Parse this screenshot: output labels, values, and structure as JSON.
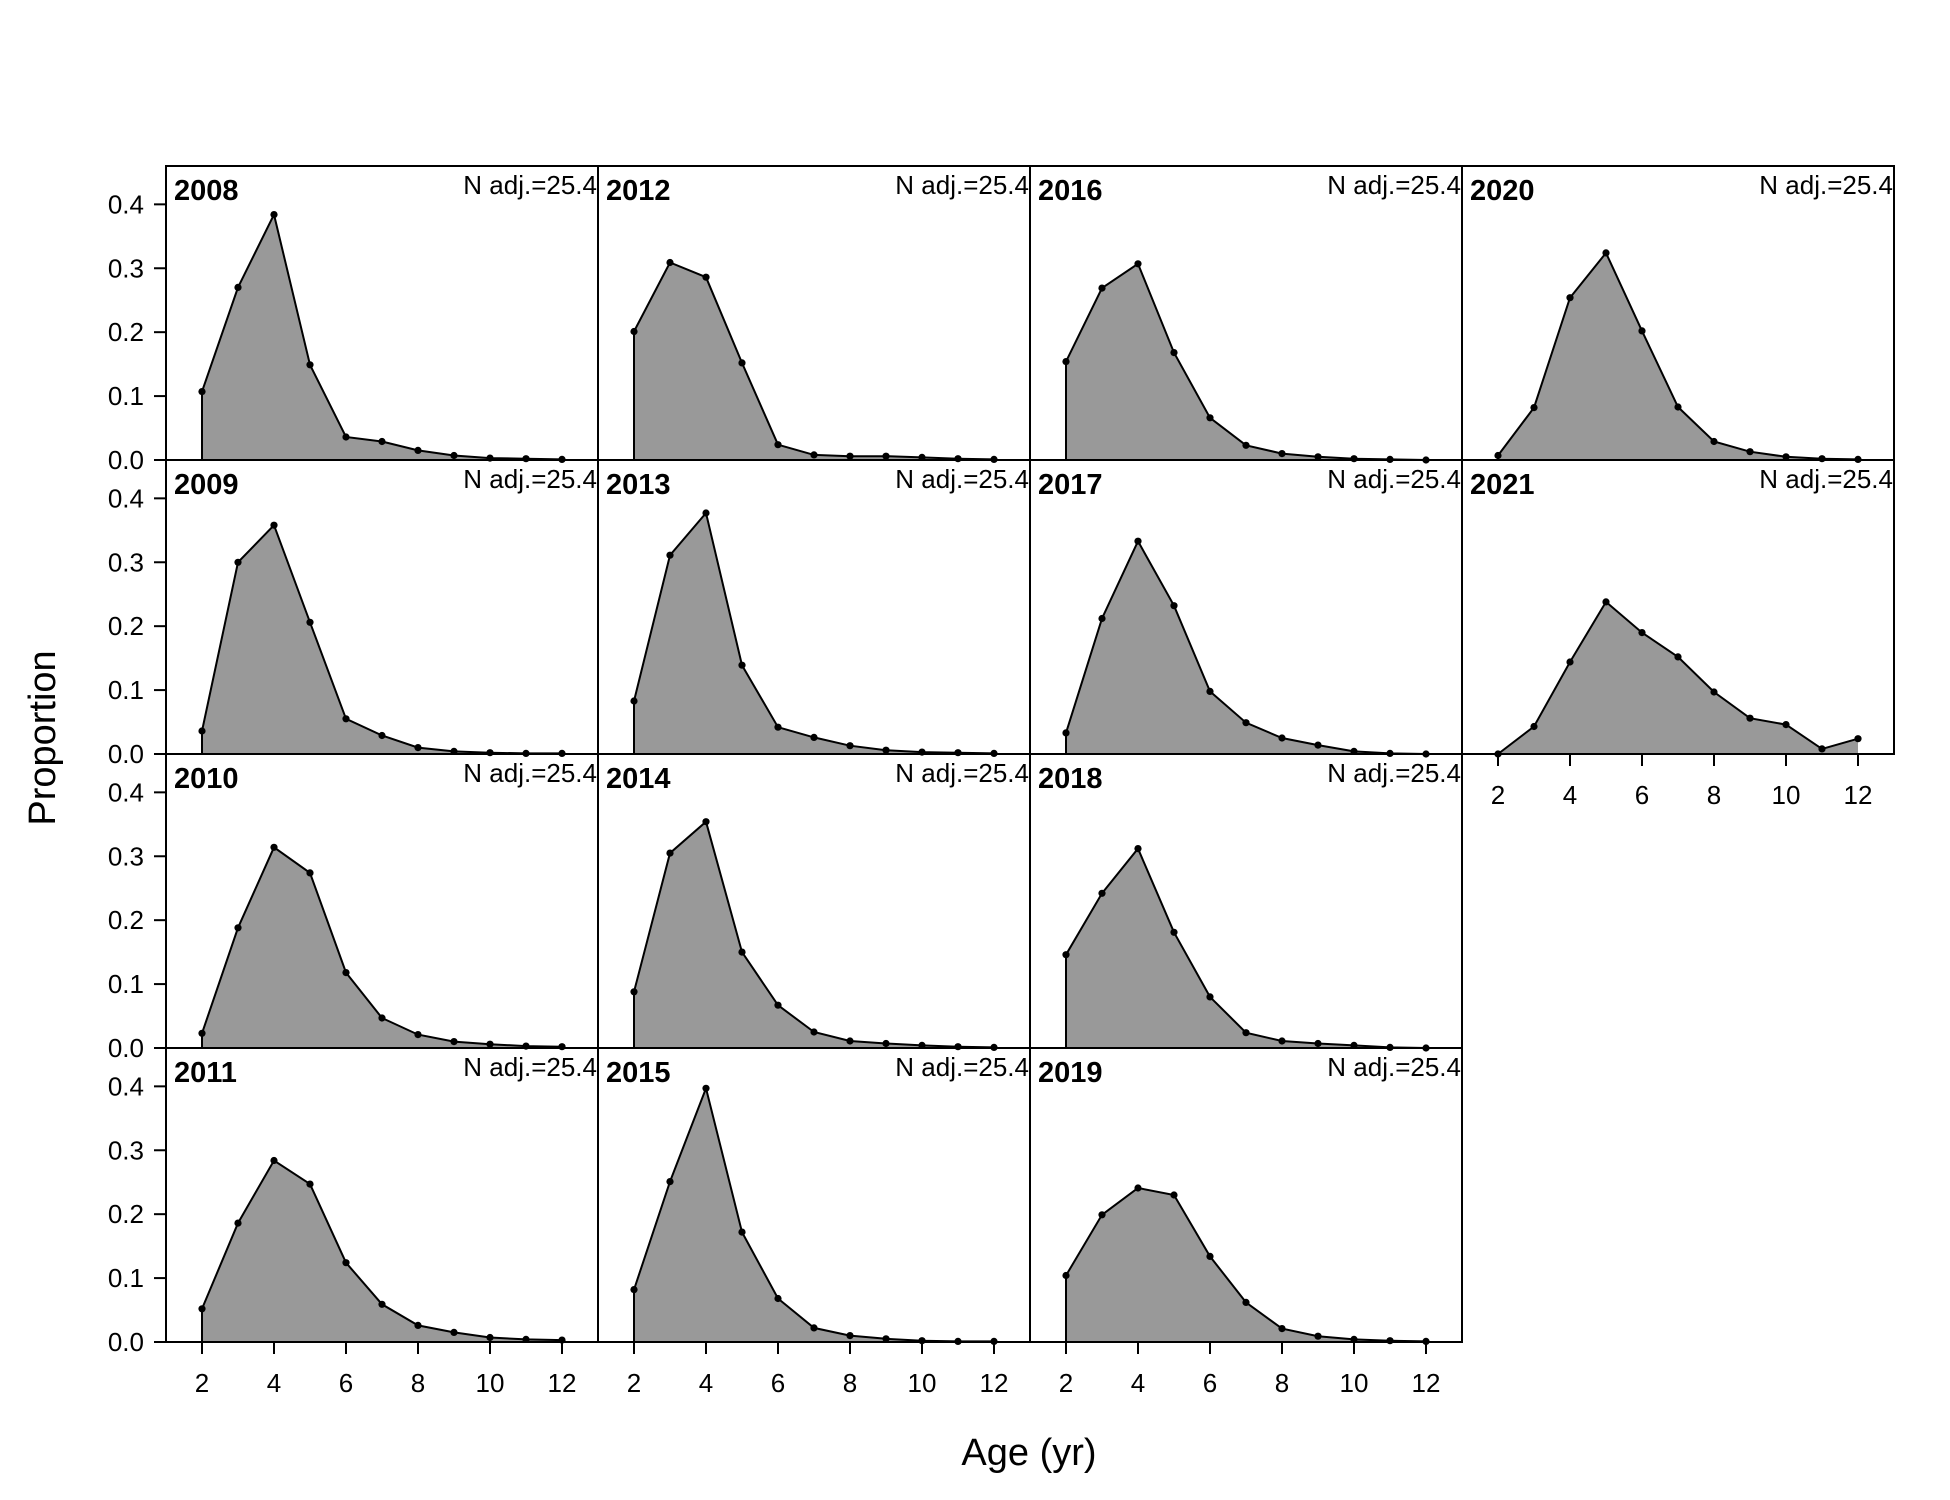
{
  "chart_data": {
    "type": "area",
    "xlabel": "Age (yr)",
    "ylabel": "Proportion",
    "xlim": [
      1,
      13
    ],
    "ylim": [
      0,
      0.46
    ],
    "x_ticks": [
      2,
      4,
      6,
      8,
      10,
      12
    ],
    "y_ticks": [
      0.0,
      0.1,
      0.2,
      0.3,
      0.4
    ],
    "y_tick_labels": [
      "0.0",
      "0.1",
      "0.2",
      "0.3",
      "0.4"
    ],
    "ages": [
      2,
      3,
      4,
      5,
      6,
      7,
      8,
      9,
      10,
      11,
      12
    ],
    "fill_color": "#999999",
    "line_color": "#000000",
    "panels": [
      {
        "year": "2008",
        "note": "N adj.=25.4",
        "values": [
          0.107,
          0.27,
          0.384,
          0.149,
          0.036,
          0.029,
          0.015,
          0.007,
          0.003,
          0.002,
          0.001
        ]
      },
      {
        "year": "2009",
        "note": "N adj.=25.4",
        "values": [
          0.036,
          0.3,
          0.358,
          0.206,
          0.055,
          0.029,
          0.01,
          0.004,
          0.002,
          0.001,
          0.001
        ]
      },
      {
        "year": "2010",
        "note": "N adj.=25.4",
        "values": [
          0.023,
          0.188,
          0.314,
          0.274,
          0.118,
          0.047,
          0.021,
          0.01,
          0.006,
          0.003,
          0.002
        ]
      },
      {
        "year": "2011",
        "note": "N adj.=25.4",
        "values": [
          0.052,
          0.186,
          0.284,
          0.247,
          0.124,
          0.059,
          0.026,
          0.015,
          0.007,
          0.004,
          0.003
        ]
      },
      {
        "year": "2012",
        "note": "N adj.=25.4",
        "values": [
          0.201,
          0.309,
          0.286,
          0.152,
          0.024,
          0.008,
          0.006,
          0.006,
          0.004,
          0.002,
          0.001
        ]
      },
      {
        "year": "2013",
        "note": "N adj.=25.4",
        "values": [
          0.083,
          0.311,
          0.377,
          0.139,
          0.042,
          0.026,
          0.013,
          0.006,
          0.003,
          0.002,
          0.001
        ]
      },
      {
        "year": "2014",
        "note": "N adj.=25.4",
        "values": [
          0.088,
          0.305,
          0.354,
          0.15,
          0.067,
          0.025,
          0.011,
          0.007,
          0.004,
          0.002,
          0.001
        ]
      },
      {
        "year": "2015",
        "note": "N adj.=25.4",
        "values": [
          0.082,
          0.251,
          0.397,
          0.172,
          0.068,
          0.022,
          0.01,
          0.005,
          0.002,
          0.001,
          0.001
        ]
      },
      {
        "year": "2016",
        "note": "N adj.=25.4",
        "values": [
          0.154,
          0.269,
          0.307,
          0.168,
          0.066,
          0.023,
          0.01,
          0.005,
          0.002,
          0.001,
          0.0
        ]
      },
      {
        "year": "2017",
        "note": "N adj.=25.4",
        "values": [
          0.033,
          0.212,
          0.333,
          0.232,
          0.098,
          0.049,
          0.025,
          0.014,
          0.004,
          0.001,
          0.0
        ]
      },
      {
        "year": "2018",
        "note": "N adj.=25.4",
        "values": [
          0.146,
          0.242,
          0.312,
          0.181,
          0.08,
          0.024,
          0.011,
          0.007,
          0.004,
          0.001,
          0.0
        ]
      },
      {
        "year": "2019",
        "note": "N adj.=25.4",
        "values": [
          0.104,
          0.199,
          0.241,
          0.23,
          0.134,
          0.062,
          0.021,
          0.009,
          0.004,
          0.002,
          0.001
        ]
      },
      {
        "year": "2020",
        "note": "N adj.=25.4",
        "values": [
          0.007,
          0.082,
          0.254,
          0.324,
          0.202,
          0.083,
          0.029,
          0.013,
          0.005,
          0.002,
          0.001
        ]
      },
      {
        "year": "2021",
        "note": "N adj.=25.4",
        "values": [
          0.0,
          0.043,
          0.144,
          0.238,
          0.19,
          0.152,
          0.097,
          0.056,
          0.046,
          0.008,
          0.024
        ]
      }
    ]
  }
}
